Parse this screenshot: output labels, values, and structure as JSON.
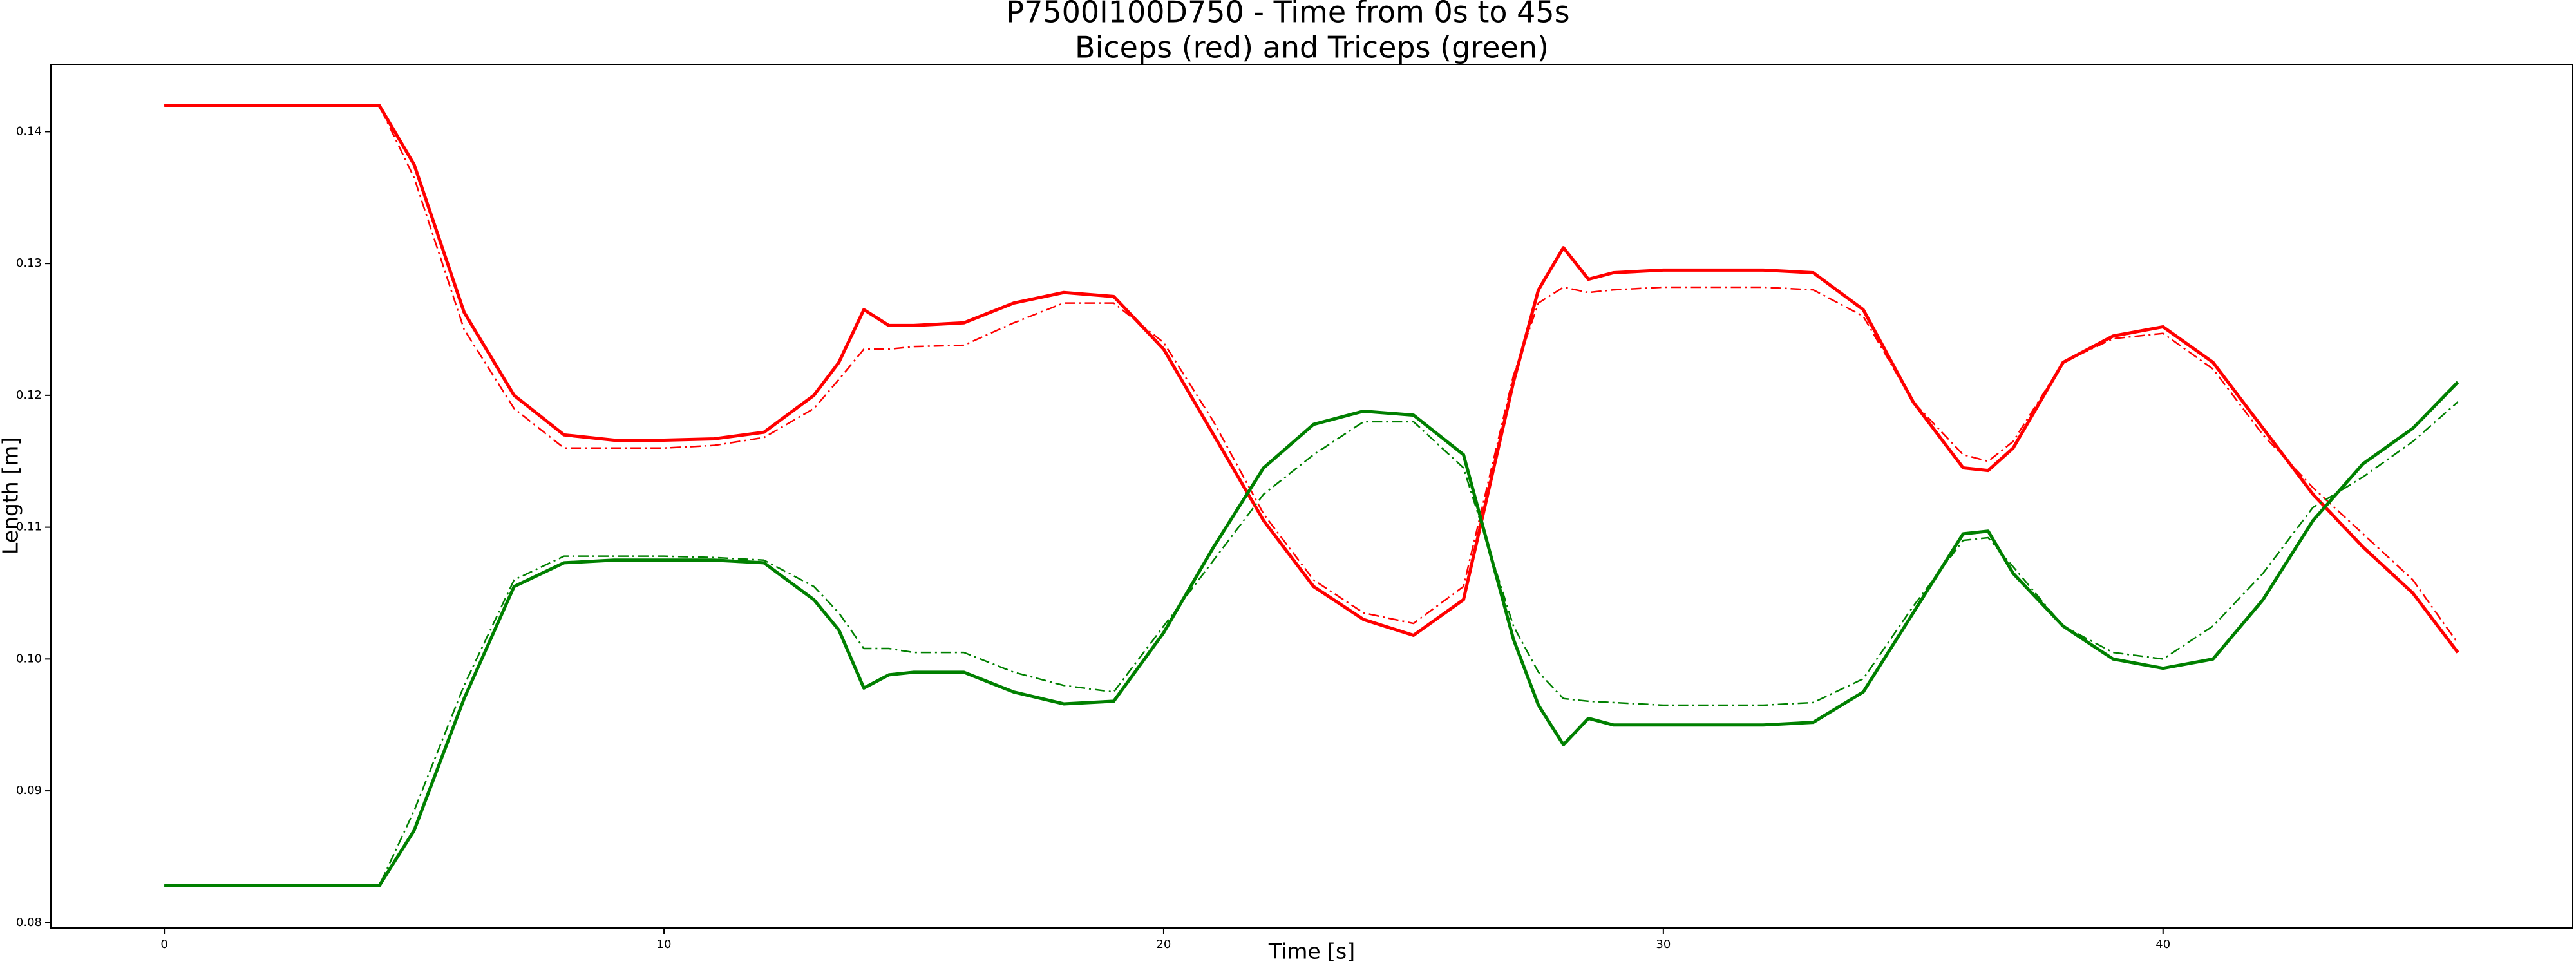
{
  "chart_data": {
    "type": "line",
    "title": "P7500I100D750 - Time from 0s to 45s",
    "subtitle": "Biceps (red) and Triceps (green)",
    "x_label": "Time [s]",
    "y_label": "Length [m]",
    "x": [
      0,
      1,
      2,
      3,
      4,
      4.3,
      5,
      6,
      7,
      8,
      9,
      10,
      11,
      12,
      13,
      13.5,
      14,
      14.5,
      15,
      16,
      17,
      18,
      19,
      20,
      21,
      22,
      23,
      24,
      25,
      26,
      27,
      27.5,
      28,
      28.5,
      29,
      30,
      31,
      32,
      33,
      34,
      35,
      36,
      36.5,
      37,
      38,
      39,
      40,
      41,
      42,
      43,
      44,
      45,
      45.9
    ],
    "series": [
      {
        "color": "#ff0000",
        "linestyle": "solid",
        "values": [
          0.142,
          0.142,
          0.142,
          0.142,
          0.142,
          0.142,
          0.1375,
          0.1263,
          0.12,
          0.117,
          0.1166,
          0.1166,
          0.1167,
          0.1172,
          0.12,
          0.1225,
          0.1265,
          0.1253,
          0.1253,
          0.1255,
          0.127,
          0.1278,
          0.1275,
          0.1235,
          0.117,
          0.1105,
          0.1055,
          0.103,
          0.1018,
          0.1045,
          0.121,
          0.128,
          0.1312,
          0.1288,
          0.1293,
          0.1295,
          0.1295,
          0.1295,
          0.1293,
          0.1265,
          0.1195,
          0.1145,
          0.1143,
          0.116,
          0.1225,
          0.1245,
          0.1252,
          0.1225,
          0.1175,
          0.1125,
          0.1085,
          0.105,
          0.1005
        ]
      },
      {
        "color": "#ff0000",
        "linestyle": "dashdot",
        "values": [
          0.142,
          0.142,
          0.142,
          0.142,
          0.142,
          0.142,
          0.1365,
          0.125,
          0.119,
          0.116,
          0.116,
          0.116,
          0.1162,
          0.1168,
          0.119,
          0.1212,
          0.1235,
          0.1235,
          0.1237,
          0.1238,
          0.1255,
          0.127,
          0.127,
          0.124,
          0.118,
          0.111,
          0.106,
          0.1035,
          0.1027,
          0.1055,
          0.1215,
          0.127,
          0.1282,
          0.1278,
          0.128,
          0.1282,
          0.1282,
          0.1282,
          0.128,
          0.126,
          0.1195,
          0.1155,
          0.115,
          0.1165,
          0.1225,
          0.1243,
          0.1247,
          0.122,
          0.117,
          0.113,
          0.1095,
          0.106,
          0.1012
        ]
      },
      {
        "color": "#008000",
        "linestyle": "solid",
        "values": [
          0.0828,
          0.0828,
          0.0828,
          0.0828,
          0.0828,
          0.0828,
          0.087,
          0.097,
          0.1055,
          0.1073,
          0.1075,
          0.1075,
          0.1075,
          0.1073,
          0.1045,
          0.1022,
          0.0978,
          0.0988,
          0.099,
          0.099,
          0.0975,
          0.0966,
          0.0968,
          0.102,
          0.1085,
          0.1145,
          0.1178,
          0.1188,
          0.1185,
          0.1155,
          0.1015,
          0.0965,
          0.0935,
          0.0955,
          0.095,
          0.095,
          0.095,
          0.095,
          0.0952,
          0.0975,
          0.1035,
          0.1095,
          0.1097,
          0.1065,
          0.1025,
          0.1,
          0.0993,
          0.1,
          0.1045,
          0.1105,
          0.1148,
          0.1175,
          0.121
        ]
      },
      {
        "color": "#008000",
        "linestyle": "dashdot",
        "values": [
          0.0828,
          0.0828,
          0.0828,
          0.0828,
          0.0828,
          0.0828,
          0.0885,
          0.098,
          0.106,
          0.1078,
          0.1078,
          0.1078,
          0.1077,
          0.1075,
          0.1055,
          0.1035,
          0.1008,
          0.1008,
          0.1005,
          0.1005,
          0.099,
          0.098,
          0.0975,
          0.1025,
          0.1075,
          0.1125,
          0.1155,
          0.118,
          0.118,
          0.1145,
          0.1025,
          0.099,
          0.097,
          0.0968,
          0.0967,
          0.0965,
          0.0965,
          0.0965,
          0.0967,
          0.0985,
          0.104,
          0.109,
          0.1092,
          0.107,
          0.1025,
          0.1005,
          0.1,
          0.1025,
          0.1065,
          0.1115,
          0.1138,
          0.1165,
          0.1195
        ]
      }
    ],
    "xlim": [
      -2.27,
      48.2
    ],
    "ylim": [
      0.0796,
      0.1451
    ],
    "xticks": [
      0,
      10,
      20,
      30,
      40
    ],
    "yticks": [
      0.08,
      0.09,
      {
        "value": 0.1,
        "label": "0.10"
      },
      0.11,
      0.12,
      0.13,
      0.14
    ],
    "grid": false
  }
}
